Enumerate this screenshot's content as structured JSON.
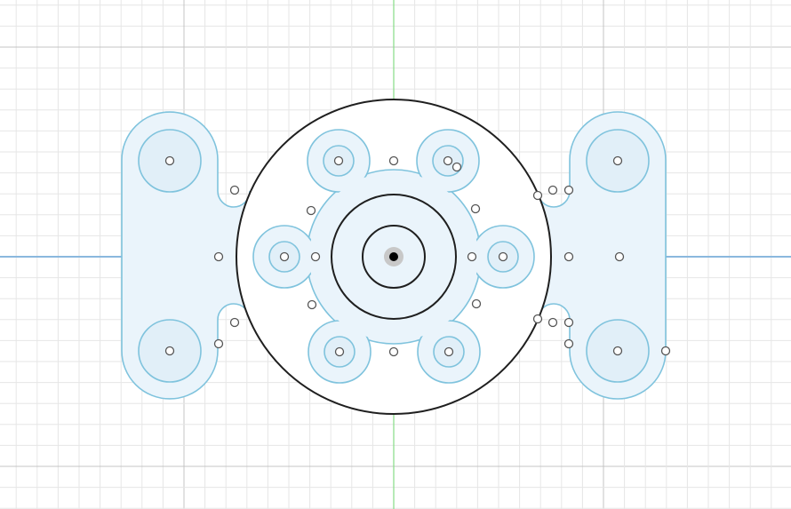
{
  "view": {
    "type": "sketch-canvas",
    "grid": {
      "visible": true,
      "minor_spacing_units": 1,
      "major_every": 4
    },
    "axes": {
      "origin_visible": true,
      "construction_line": "horizontal"
    }
  },
  "colors": {
    "background": "#ffffff",
    "profile_fill": "#eaf4fb",
    "profile_stroke": "#7fc3dd",
    "sketch_line": "#1f1f1f",
    "x_axis": "#8ab8de",
    "x_axis_construction": "#f2a0a0",
    "y_axis": "#8fde8f",
    "grid_minor": "#e6e6e6",
    "grid_major": "#c4c4c4"
  },
  "icons": {
    "sketch_point": "hollow-circle",
    "origin_point": "filled-dot"
  }
}
